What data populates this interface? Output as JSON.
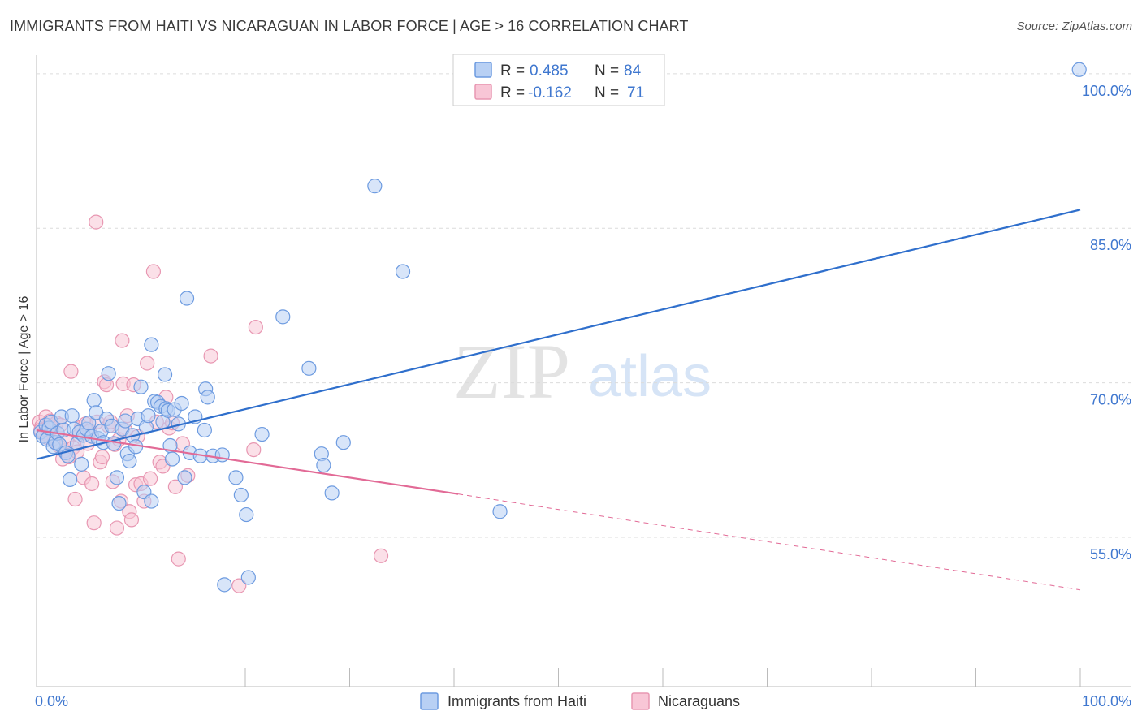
{
  "title": "IMMIGRANTS FROM HAITI VS NICARAGUAN IN LABOR FORCE | AGE > 16 CORRELATION CHART",
  "source": "Source: ZipAtlas.com",
  "watermark": {
    "zip": "ZIP",
    "atlas": "atlas"
  },
  "colors": {
    "haiti_fill": "#b8d0f4",
    "haiti_stroke": "#6d9be0",
    "haiti_line": "#2f6fcc",
    "nica_fill": "#f8c6d6",
    "nica_stroke": "#e897b2",
    "nica_line": "#e26a96",
    "axis_text": "#3f77cf",
    "grid": "#dcdcdc"
  },
  "legend_top": [
    {
      "r_label": "R =",
      "r_value": "0.485",
      "n_label": "N =",
      "n_value": "84"
    },
    {
      "r_label": "R =",
      "r_value": "-0.162",
      "n_label": "N =",
      "n_value": "71"
    }
  ],
  "chart_data": {
    "type": "scatter",
    "title": "IMMIGRANTS FROM HAITI VS NICARAGUAN IN LABOR FORCE | AGE > 16 CORRELATION CHART",
    "xlabel": "",
    "ylabel": "In Labor Force | Age > 16",
    "xlim": [
      0,
      100
    ],
    "ylim": [
      40.5,
      101.8
    ],
    "x_tick_labels": [
      "0.0%",
      "100.0%"
    ],
    "y_ticks": [
      55,
      70,
      85,
      100
    ],
    "y_tick_labels": [
      "55.0%",
      "70.0%",
      "85.0%",
      "100.0%"
    ],
    "grid": true,
    "legend_position": "bottom-center",
    "series": [
      {
        "name": "Immigrants from Haiti",
        "r": 0.485,
        "n": 84,
        "trend": {
          "x0": 0,
          "y0": 62.6,
          "x1": 100,
          "y1": 86.8
        },
        "points": [
          [
            0.4,
            65.2
          ],
          [
            0.6,
            64.8
          ],
          [
            0.9,
            65.9
          ],
          [
            1.0,
            64.5
          ],
          [
            1.2,
            65.6
          ],
          [
            1.4,
            66.2
          ],
          [
            1.6,
            63.8
          ],
          [
            1.8,
            64.2
          ],
          [
            2.0,
            65.1
          ],
          [
            2.2,
            64.0
          ],
          [
            2.4,
            66.7
          ],
          [
            2.6,
            65.4
          ],
          [
            2.8,
            63.2
          ],
          [
            3.0,
            62.9
          ],
          [
            3.2,
            60.6
          ],
          [
            3.4,
            66.8
          ],
          [
            3.6,
            65.5
          ],
          [
            3.9,
            64.1
          ],
          [
            4.1,
            65.2
          ],
          [
            4.3,
            62.1
          ],
          [
            4.5,
            64.9
          ],
          [
            4.8,
            65.5
          ],
          [
            5.0,
            66.1
          ],
          [
            5.3,
            64.8
          ],
          [
            5.5,
            68.3
          ],
          [
            5.7,
            67.1
          ],
          [
            5.9,
            64.6
          ],
          [
            6.2,
            65.3
          ],
          [
            6.4,
            64.2
          ],
          [
            6.7,
            66.5
          ],
          [
            6.9,
            70.9
          ],
          [
            7.2,
            65.8
          ],
          [
            7.4,
            64.1
          ],
          [
            7.7,
            60.8
          ],
          [
            7.9,
            58.3
          ],
          [
            8.2,
            65.5
          ],
          [
            8.5,
            66.3
          ],
          [
            8.7,
            63.1
          ],
          [
            8.9,
            62.4
          ],
          [
            9.2,
            64.9
          ],
          [
            9.5,
            63.8
          ],
          [
            9.7,
            66.5
          ],
          [
            10.0,
            69.6
          ],
          [
            10.3,
            59.4
          ],
          [
            10.5,
            65.7
          ],
          [
            10.7,
            66.8
          ],
          [
            11.0,
            58.5
          ],
          [
            11.0,
            73.7
          ],
          [
            11.3,
            68.2
          ],
          [
            11.6,
            68.1
          ],
          [
            11.9,
            67.7
          ],
          [
            12.1,
            66.2
          ],
          [
            12.3,
            70.8
          ],
          [
            12.4,
            67.5
          ],
          [
            12.6,
            67.3
          ],
          [
            12.8,
            63.9
          ],
          [
            13.0,
            62.6
          ],
          [
            13.2,
            67.4
          ],
          [
            13.6,
            66.0
          ],
          [
            13.9,
            68.0
          ],
          [
            14.2,
            60.8
          ],
          [
            14.4,
            78.2
          ],
          [
            14.7,
            63.2
          ],
          [
            15.2,
            66.7
          ],
          [
            15.7,
            62.9
          ],
          [
            16.1,
            65.4
          ],
          [
            16.2,
            69.4
          ],
          [
            16.4,
            68.6
          ],
          [
            16.9,
            62.9
          ],
          [
            17.8,
            63.0
          ],
          [
            18.0,
            50.4
          ],
          [
            19.1,
            60.8
          ],
          [
            19.6,
            59.1
          ],
          [
            20.1,
            57.2
          ],
          [
            20.3,
            51.1
          ],
          [
            21.6,
            65.0
          ],
          [
            23.6,
            76.4
          ],
          [
            26.1,
            71.4
          ],
          [
            27.3,
            63.1
          ],
          [
            27.5,
            62.0
          ],
          [
            28.3,
            59.3
          ],
          [
            29.4,
            64.2
          ],
          [
            32.4,
            89.1
          ],
          [
            35.1,
            80.8
          ],
          [
            44.4,
            57.5
          ],
          [
            99.9,
            100.4
          ]
        ]
      },
      {
        "name": "Nicaraguans",
        "r": -0.162,
        "n": 71,
        "trend": {
          "x0": 0,
          "y0": 65.4,
          "x1": 40.4,
          "y1": 59.2,
          "dash_x1": 100,
          "dash_y1": 49.9
        },
        "points": [
          [
            0.3,
            66.2
          ],
          [
            0.5,
            65.8
          ],
          [
            0.7,
            65.1
          ],
          [
            0.9,
            66.7
          ],
          [
            1.1,
            64.9
          ],
          [
            1.3,
            66.3
          ],
          [
            1.5,
            65.6
          ],
          [
            1.7,
            64.6
          ],
          [
            1.9,
            66.1
          ],
          [
            2.1,
            63.9
          ],
          [
            2.3,
            65.9
          ],
          [
            2.5,
            62.6
          ],
          [
            2.7,
            63.4
          ],
          [
            2.9,
            64.3
          ],
          [
            3.1,
            62.8
          ],
          [
            3.3,
            71.1
          ],
          [
            3.5,
            63.7
          ],
          [
            3.7,
            58.7
          ],
          [
            3.9,
            63.3
          ],
          [
            4.1,
            64.9
          ],
          [
            4.3,
            65.7
          ],
          [
            4.5,
            60.8
          ],
          [
            4.7,
            66.0
          ],
          [
            4.9,
            64.1
          ],
          [
            5.1,
            65.3
          ],
          [
            5.3,
            60.2
          ],
          [
            5.5,
            56.4
          ],
          [
            5.7,
            85.6
          ],
          [
            5.8,
            66.2
          ],
          [
            6.1,
            62.3
          ],
          [
            6.3,
            62.8
          ],
          [
            6.5,
            70.1
          ],
          [
            6.7,
            69.8
          ],
          [
            6.9,
            65.8
          ],
          [
            7.1,
            66.2
          ],
          [
            7.3,
            60.4
          ],
          [
            7.5,
            64.0
          ],
          [
            7.7,
            55.9
          ],
          [
            7.9,
            64.5
          ],
          [
            8.1,
            58.5
          ],
          [
            8.2,
            74.1
          ],
          [
            8.3,
            69.9
          ],
          [
            8.5,
            65.4
          ],
          [
            8.7,
            66.8
          ],
          [
            8.9,
            57.5
          ],
          [
            9.1,
            56.7
          ],
          [
            9.3,
            69.8
          ],
          [
            9.5,
            60.1
          ],
          [
            9.7,
            64.8
          ],
          [
            10.0,
            60.2
          ],
          [
            10.3,
            58.5
          ],
          [
            10.6,
            71.9
          ],
          [
            10.9,
            60.7
          ],
          [
            11.2,
            80.8
          ],
          [
            11.5,
            66.2
          ],
          [
            11.8,
            62.3
          ],
          [
            12.1,
            61.9
          ],
          [
            12.4,
            68.6
          ],
          [
            12.7,
            65.6
          ],
          [
            13.0,
            66.1
          ],
          [
            13.3,
            59.9
          ],
          [
            13.6,
            52.9
          ],
          [
            14.0,
            64.1
          ],
          [
            14.5,
            61.0
          ],
          [
            16.7,
            72.6
          ],
          [
            19.4,
            50.3
          ],
          [
            20.8,
            63.5
          ],
          [
            21.0,
            75.4
          ],
          [
            33.0,
            53.2
          ],
          [
            1.0,
            64.7
          ],
          [
            0.4,
            65.4
          ]
        ]
      }
    ]
  },
  "legend_bottom": [
    "Immigrants from Haiti",
    "Nicaraguans"
  ]
}
